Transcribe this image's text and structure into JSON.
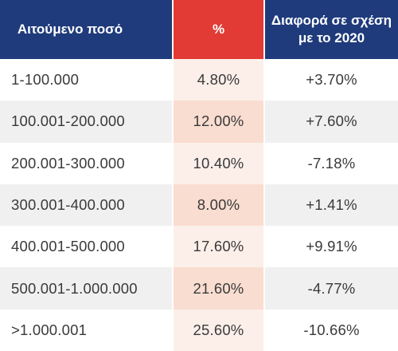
{
  "headers": {
    "amount": "Αιτούμενο ποσό",
    "percent": "%",
    "difference": "Διαφορά σε σχέση με το 2020"
  },
  "rows": [
    {
      "amount": "1-100.000",
      "percent": "4.80%",
      "difference": "+3.70%"
    },
    {
      "amount": "100.001-200.000",
      "percent": "12.00%",
      "difference": "+7.60%"
    },
    {
      "amount": "200.001-300.000",
      "percent": "10.40%",
      "difference": "-7.18%"
    },
    {
      "amount": "300.001-400.000",
      "percent": "8.00%",
      "difference": "+1.41%"
    },
    {
      "amount": "400.001-500.000",
      "percent": "17.60%",
      "difference": "+9.91%"
    },
    {
      "amount": "500.001-1.000.000",
      "percent": "21.60%",
      "difference": "-4.77%"
    },
    {
      "amount": ">1.000.001",
      "percent": "25.60%",
      "difference": "-10.66%"
    }
  ],
  "colors": {
    "header_blue": "#1f3b7c",
    "header_red": "#e23a35",
    "percent_column_tint": "#f9ddd0"
  }
}
